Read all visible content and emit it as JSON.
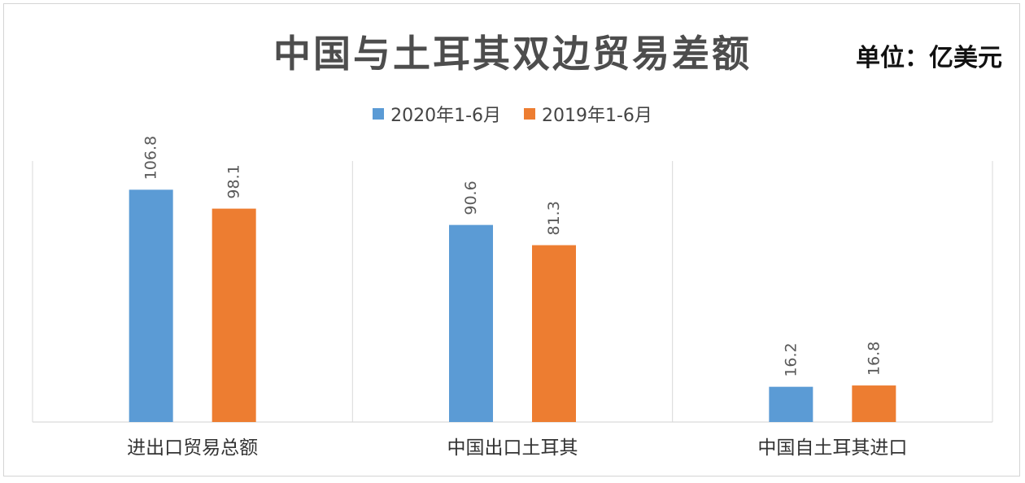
{
  "chart_data": {
    "type": "bar",
    "title": "中国与土耳其双边贸易差额",
    "unit": "单位：亿美元",
    "categories": [
      "进出口贸易总额",
      "中国出口土耳其",
      "中国自土耳其进口"
    ],
    "series": [
      {
        "name": "2020年1-6月",
        "color": "#5b9bd5",
        "values": [
          106.8,
          90.6,
          16.2
        ]
      },
      {
        "name": "2019年1-6月",
        "color": "#ed7d31",
        "values": [
          98.1,
          81.3,
          16.8
        ]
      }
    ],
    "data_labels": [
      [
        "106.8",
        "90.6",
        "16.2"
      ],
      [
        "98.1",
        "81.3",
        "16.8"
      ]
    ],
    "legend_position": "top-center",
    "grid": "vertical-category-dividers",
    "xlabel": "",
    "ylabel": ""
  }
}
